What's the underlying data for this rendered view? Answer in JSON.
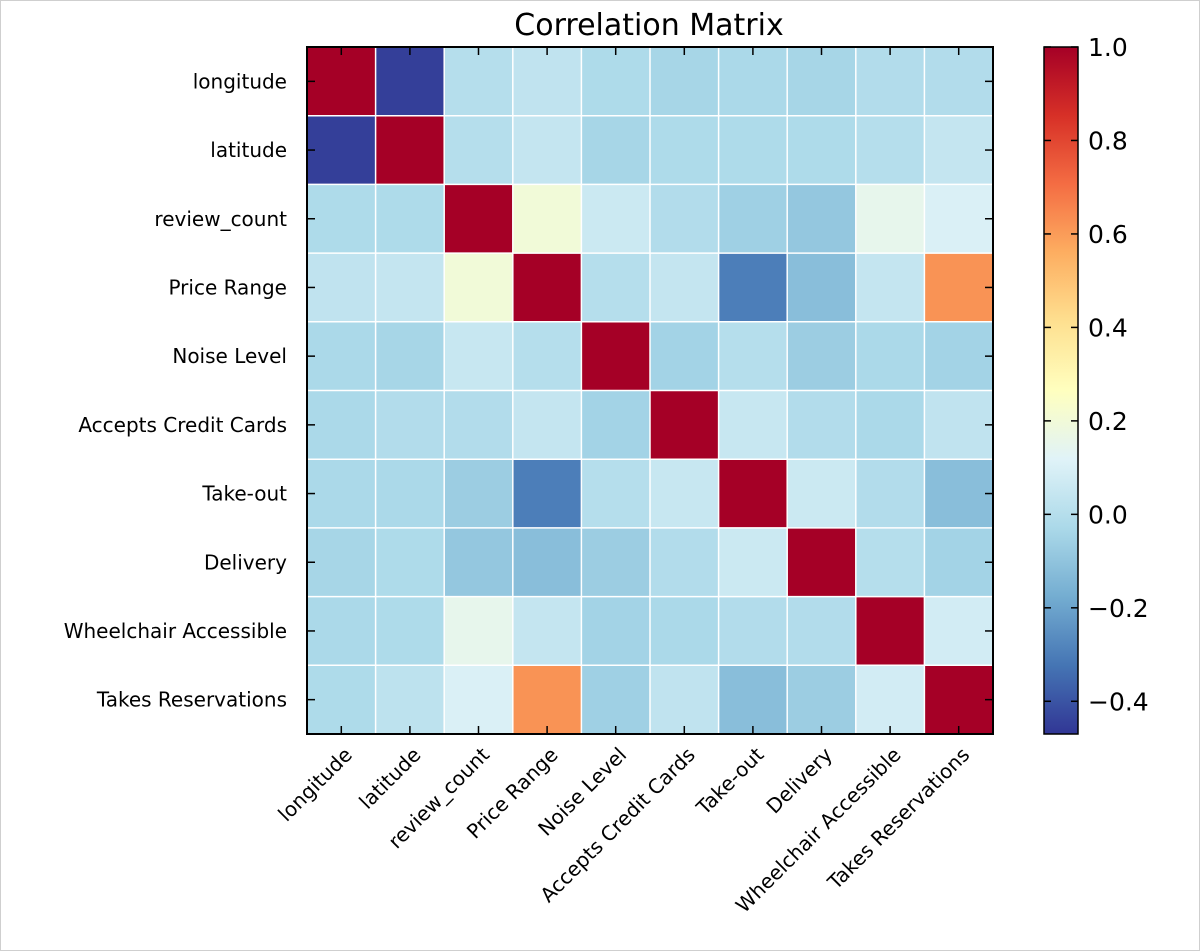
{
  "chart_data": {
    "type": "heatmap",
    "title": "Correlation Matrix",
    "xlabel": "",
    "ylabel": "",
    "labels": [
      "longitude",
      "latitude",
      "review_count",
      "Price Range",
      "Noise Level",
      "Accepts Credit Cards",
      "Take-out",
      "Delivery",
      "Wheelchair Accessible",
      "Takes Reservations"
    ],
    "matrix": [
      [
        1.0,
        -0.45,
        0.0,
        0.03,
        -0.02,
        -0.04,
        -0.03,
        -0.04,
        -0.01,
        -0.01
      ],
      [
        -0.45,
        1.0,
        0.0,
        0.04,
        -0.04,
        -0.02,
        -0.02,
        -0.02,
        0.0,
        0.04
      ],
      [
        -0.02,
        -0.02,
        1.0,
        0.2,
        0.06,
        -0.01,
        -0.06,
        -0.09,
        0.15,
        0.1
      ],
      [
        0.03,
        0.04,
        0.2,
        1.0,
        0.0,
        0.04,
        -0.3,
        -0.12,
        0.04,
        0.62
      ],
      [
        -0.03,
        -0.04,
        0.05,
        0.0,
        1.0,
        -0.05,
        0.0,
        -0.07,
        -0.03,
        -0.05
      ],
      [
        -0.03,
        -0.01,
        -0.01,
        0.04,
        -0.05,
        1.0,
        0.05,
        -0.01,
        -0.03,
        0.03
      ],
      [
        -0.03,
        -0.03,
        -0.07,
        -0.3,
        0.0,
        0.05,
        1.0,
        0.06,
        -0.01,
        -0.12
      ],
      [
        -0.04,
        -0.02,
        -0.09,
        -0.12,
        -0.07,
        -0.01,
        0.06,
        1.0,
        0.0,
        -0.05
      ],
      [
        -0.03,
        -0.02,
        0.15,
        0.04,
        -0.05,
        -0.03,
        -0.01,
        -0.01,
        1.0,
        0.08
      ],
      [
        -0.02,
        0.02,
        0.1,
        0.62,
        -0.06,
        0.03,
        -0.12,
        -0.07,
        0.08,
        1.0
      ]
    ],
    "colorbar": {
      "min": -0.47,
      "max": 1.0,
      "ticks": [
        1.0,
        0.8,
        0.6,
        0.4,
        0.2,
        0.0,
        -0.2,
        -0.4
      ],
      "tick_labels": [
        "1.0",
        "0.8",
        "0.6",
        "0.4",
        "0.2",
        "0.0",
        "−0.2",
        "−0.4"
      ],
      "colormap": "RdYlBu_r",
      "color_stops": [
        "#313695",
        "#4575b4",
        "#74add1",
        "#abd9e9",
        "#e0f3f8",
        "#ffffbf",
        "#fee090",
        "#fdae61",
        "#f46d43",
        "#d73027",
        "#a50026"
      ]
    },
    "grid": true,
    "grid_color": "#ffffff",
    "colorbar_placement": "right"
  }
}
